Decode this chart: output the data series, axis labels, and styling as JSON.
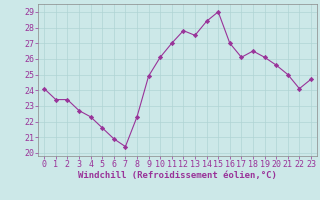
{
  "x": [
    0,
    1,
    2,
    3,
    4,
    5,
    6,
    7,
    8,
    9,
    10,
    11,
    12,
    13,
    14,
    15,
    16,
    17,
    18,
    19,
    20,
    21,
    22,
    23
  ],
  "y": [
    24.1,
    23.4,
    23.4,
    22.7,
    22.3,
    21.6,
    20.9,
    20.4,
    22.3,
    24.9,
    26.1,
    27.0,
    27.8,
    27.5,
    28.4,
    29.0,
    27.0,
    26.1,
    26.5,
    26.1,
    25.6,
    25.0,
    24.1,
    24.7
  ],
  "line_color": "#993399",
  "marker": "D",
  "marker_size": 2.2,
  "bg_color": "#cce8e8",
  "grid_color": "#b0d4d4",
  "xlabel": "Windchill (Refroidissement éolien,°C)",
  "xlabel_color": "#993399",
  "xlabel_fontsize": 6.5,
  "tick_color": "#993399",
  "tick_fontsize": 6.0,
  "ylim": [
    19.8,
    29.5
  ],
  "yticks": [
    20,
    21,
    22,
    23,
    24,
    25,
    26,
    27,
    28,
    29
  ],
  "xticks": [
    0,
    1,
    2,
    3,
    4,
    5,
    6,
    7,
    8,
    9,
    10,
    11,
    12,
    13,
    14,
    15,
    16,
    17,
    18,
    19,
    20,
    21,
    22,
    23
  ]
}
